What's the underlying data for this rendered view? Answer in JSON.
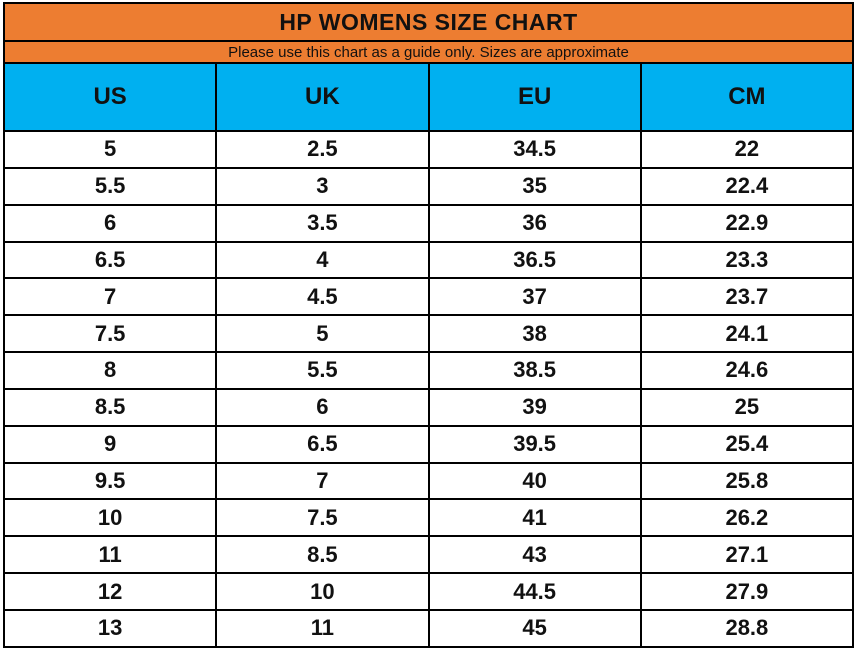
{
  "title": "HP WOMENS SIZE CHART",
  "subtitle": "Please use this chart as a guide only. Sizes are approximate",
  "colors": {
    "title_band": "#ED7D31",
    "header_band": "#00B0F0",
    "grid_border": "#000000",
    "row_background": "#FFFFFF",
    "text": "#111111"
  },
  "chart_data": {
    "type": "table",
    "title": "HP WOMENS SIZE CHART",
    "subtitle": "Please use this chart as a guide only. Sizes are approximate",
    "columns": [
      "US",
      "UK",
      "EU",
      "CM"
    ],
    "rows": [
      [
        "5",
        "2.5",
        "34.5",
        "22"
      ],
      [
        "5.5",
        "3",
        "35",
        "22.4"
      ],
      [
        "6",
        "3.5",
        "36",
        "22.9"
      ],
      [
        "6.5",
        "4",
        "36.5",
        "23.3"
      ],
      [
        "7",
        "4.5",
        "37",
        "23.7"
      ],
      [
        "7.5",
        "5",
        "38",
        "24.1"
      ],
      [
        "8",
        "5.5",
        "38.5",
        "24.6"
      ],
      [
        "8.5",
        "6",
        "39",
        "25"
      ],
      [
        "9",
        "6.5",
        "39.5",
        "25.4"
      ],
      [
        "9.5",
        "7",
        "40",
        "25.8"
      ],
      [
        "10",
        "7.5",
        "41",
        "26.2"
      ],
      [
        "11",
        "8.5",
        "43",
        "27.1"
      ],
      [
        "12",
        "10",
        "44.5",
        "27.9"
      ],
      [
        "13",
        "11",
        "45",
        "28.8"
      ]
    ],
    "layout": {
      "grid": true,
      "column_widths_pct": [
        25,
        25,
        25,
        25
      ],
      "header_position": "top"
    }
  }
}
